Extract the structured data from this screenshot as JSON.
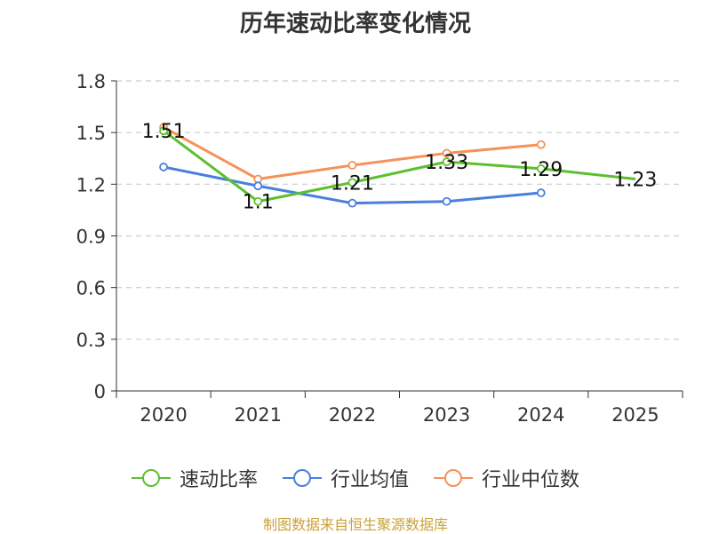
{
  "chart_data": {
    "type": "line",
    "title": "历年速动比率变化情况",
    "categories": [
      "2020",
      "2021",
      "2022",
      "2023",
      "2024",
      "2025"
    ],
    "ylim": [
      0,
      1.8
    ],
    "yticks": [
      0,
      0.3,
      0.6,
      0.9,
      1.2,
      1.5,
      1.8
    ],
    "ytick_labels": [
      "0",
      "0.3",
      "0.6",
      "0.9",
      "1.2",
      "1.5",
      "1.8"
    ],
    "grid": true,
    "legend_position": "bottom",
    "series": [
      {
        "name": "速动比率",
        "color": "#5cc02e",
        "values": [
          1.51,
          1.1,
          1.21,
          1.33,
          1.29,
          1.23
        ],
        "labels": [
          "1.51",
          "1.1",
          "1.21",
          "1.33",
          "1.29",
          "1.23"
        ],
        "show_markers": [
          true,
          true,
          true,
          true,
          true,
          false
        ]
      },
      {
        "name": "行业均值",
        "color": "#4a7fdc",
        "values": [
          1.3,
          1.19,
          1.09,
          1.1,
          1.15,
          null
        ]
      },
      {
        "name": "行业中位数",
        "color": "#f5925a",
        "values": [
          1.53,
          1.23,
          1.31,
          1.38,
          1.43,
          null
        ]
      }
    ]
  },
  "source_text": "制图数据来自恒生聚源数据库"
}
